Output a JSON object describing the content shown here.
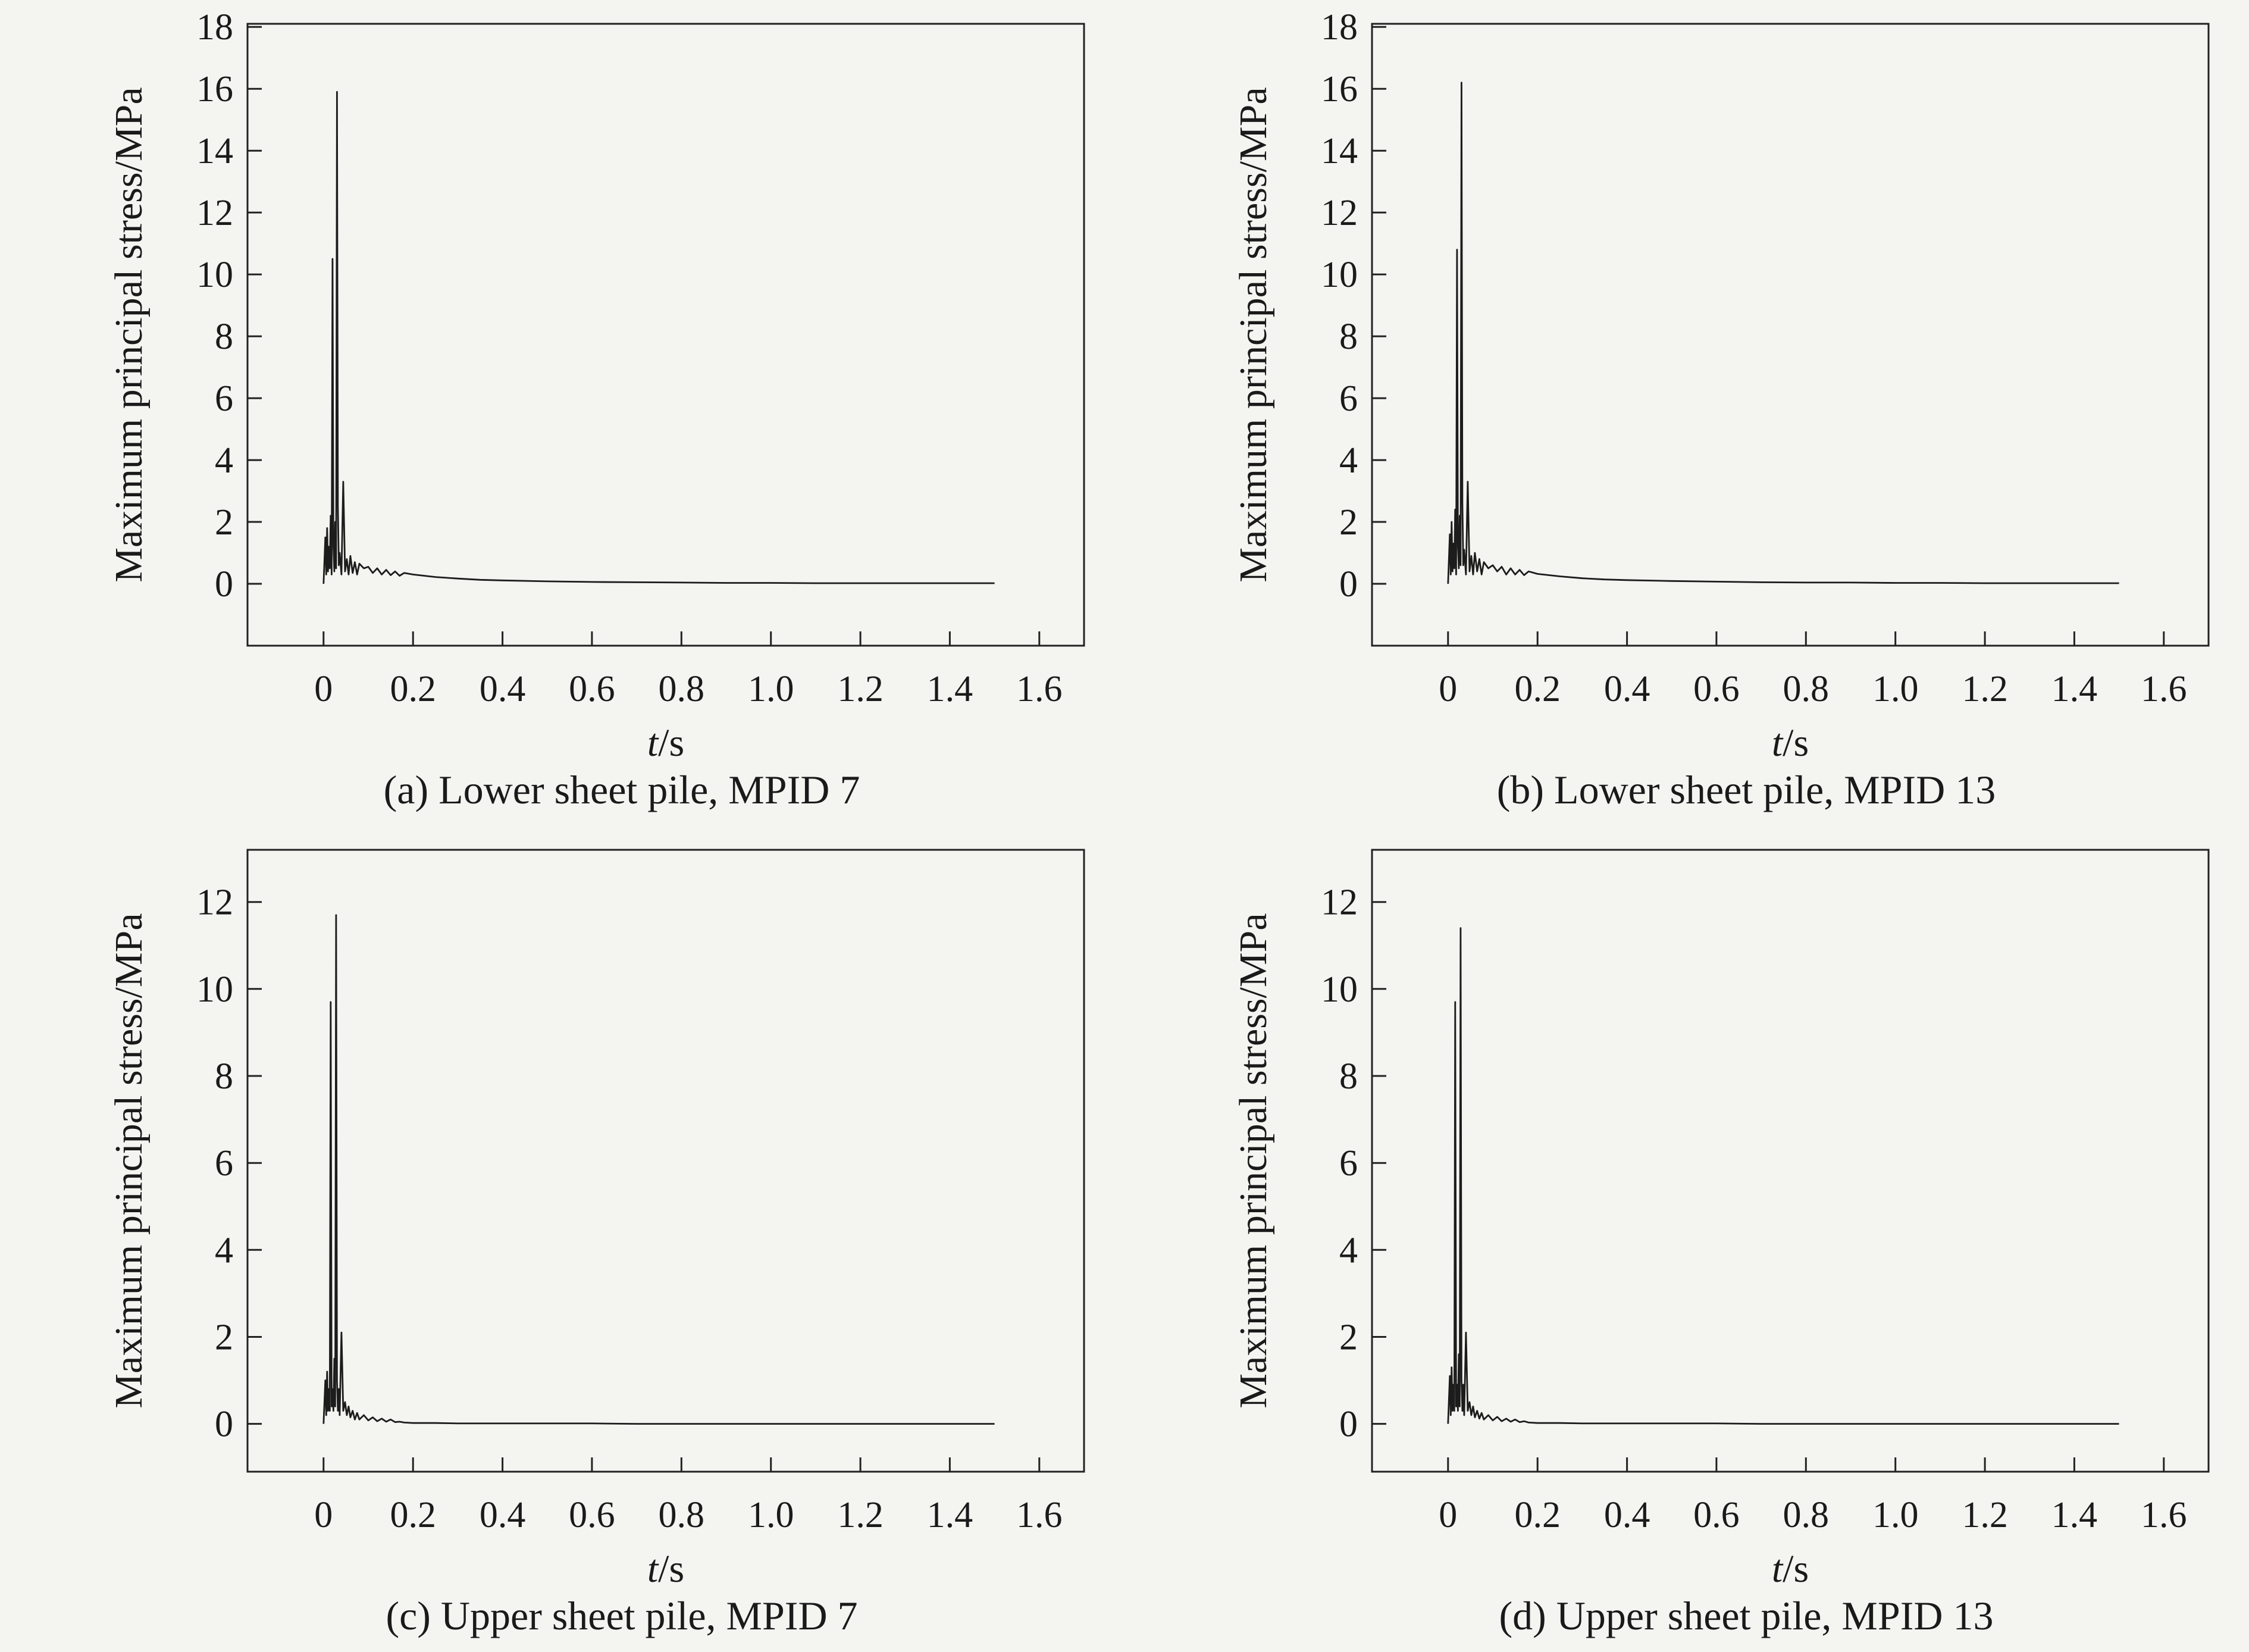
{
  "page": {
    "background": "#f4f4f1",
    "line_color": "#1c1c1c",
    "axis_color": "#222222"
  },
  "chart_data": [
    {
      "type": "line",
      "title": "(a) Lower sheet pile, MPID 7",
      "xlabel": "t/s",
      "ylabel": "Maximum principal stress/MPa",
      "xlim": [
        -0.17,
        1.7
      ],
      "ylim": [
        -2,
        18.1
      ],
      "xticks": [
        0,
        0.2,
        0.4,
        0.6,
        0.8,
        1.0,
        1.2,
        1.4,
        1.6
      ],
      "xtick_labels": [
        "0",
        "0.2",
        "0.4",
        "0.6",
        "0.8",
        "1.0",
        "1.2",
        "1.4",
        "1.6"
      ],
      "yticks": [
        0,
        2,
        4,
        6,
        8,
        10,
        12,
        14,
        16,
        18
      ],
      "ytick_labels": [
        "0",
        "2",
        "4",
        "6",
        "8",
        "10",
        "12",
        "14",
        "16",
        "18"
      ],
      "grid": false,
      "legend": "none",
      "series": [
        {
          "name": "max-principal-stress",
          "x": [
            0,
            0.004,
            0.006,
            0.008,
            0.01,
            0.012,
            0.014,
            0.016,
            0.018,
            0.02,
            0.022,
            0.024,
            0.026,
            0.028,
            0.03,
            0.032,
            0.034,
            0.036,
            0.04,
            0.044,
            0.048,
            0.052,
            0.056,
            0.06,
            0.065,
            0.07,
            0.075,
            0.08,
            0.09,
            0.1,
            0.11,
            0.12,
            0.13,
            0.14,
            0.15,
            0.16,
            0.17,
            0.18,
            0.2,
            0.25,
            0.3,
            0.35,
            0.4,
            0.5,
            0.6,
            0.7,
            0.8,
            0.9,
            1.0,
            1.1,
            1.2,
            1.3,
            1.4,
            1.5
          ],
          "y": [
            0,
            1.5,
            0.3,
            1.8,
            0.4,
            1.2,
            0.5,
            2.2,
            0.3,
            10.5,
            1.2,
            0.4,
            2.0,
            0.5,
            15.9,
            2.5,
            0.6,
            1.0,
            0.3,
            3.3,
            0.4,
            0.8,
            0.3,
            0.9,
            0.35,
            0.7,
            0.3,
            0.65,
            0.5,
            0.55,
            0.35,
            0.5,
            0.3,
            0.45,
            0.28,
            0.4,
            0.26,
            0.35,
            0.3,
            0.22,
            0.17,
            0.13,
            0.11,
            0.08,
            0.06,
            0.05,
            0.04,
            0.03,
            0.03,
            0.02,
            0.02,
            0.02,
            0.02,
            0.02
          ]
        }
      ]
    },
    {
      "type": "line",
      "title": "(b) Lower sheet pile, MPID 13",
      "xlabel": "t/s",
      "ylabel": "Maximum principal stress/MPa",
      "xlim": [
        -0.17,
        1.7
      ],
      "ylim": [
        -2,
        18.1
      ],
      "xticks": [
        0,
        0.2,
        0.4,
        0.6,
        0.8,
        1.0,
        1.2,
        1.4,
        1.6
      ],
      "xtick_labels": [
        "0",
        "0.2",
        "0.4",
        "0.6",
        "0.8",
        "1.0",
        "1.2",
        "1.4",
        "1.6"
      ],
      "yticks": [
        0,
        2,
        4,
        6,
        8,
        10,
        12,
        14,
        16,
        18
      ],
      "ytick_labels": [
        "0",
        "2",
        "4",
        "6",
        "8",
        "10",
        "12",
        "14",
        "16",
        "18"
      ],
      "grid": false,
      "legend": "none",
      "series": [
        {
          "name": "max-principal-stress",
          "x": [
            0,
            0.004,
            0.006,
            0.008,
            0.01,
            0.012,
            0.014,
            0.016,
            0.018,
            0.02,
            0.022,
            0.024,
            0.026,
            0.028,
            0.03,
            0.032,
            0.034,
            0.036,
            0.04,
            0.044,
            0.048,
            0.052,
            0.056,
            0.06,
            0.065,
            0.07,
            0.075,
            0.08,
            0.09,
            0.1,
            0.11,
            0.12,
            0.13,
            0.14,
            0.15,
            0.16,
            0.17,
            0.18,
            0.2,
            0.25,
            0.3,
            0.35,
            0.4,
            0.5,
            0.6,
            0.7,
            0.8,
            0.9,
            1.0,
            1.1,
            1.2,
            1.3,
            1.4,
            1.5
          ],
          "y": [
            0,
            1.6,
            0.3,
            2.0,
            0.4,
            1.3,
            0.5,
            2.4,
            0.3,
            10.8,
            1.2,
            0.5,
            2.2,
            0.6,
            16.2,
            2.6,
            0.6,
            1.1,
            0.3,
            3.3,
            0.4,
            0.9,
            0.3,
            1.0,
            0.4,
            0.8,
            0.3,
            0.7,
            0.5,
            0.6,
            0.4,
            0.55,
            0.3,
            0.5,
            0.3,
            0.45,
            0.28,
            0.4,
            0.32,
            0.24,
            0.18,
            0.14,
            0.12,
            0.09,
            0.07,
            0.05,
            0.04,
            0.04,
            0.03,
            0.03,
            0.02,
            0.02,
            0.02,
            0.02
          ]
        }
      ]
    },
    {
      "type": "line",
      "title": "(c) Upper sheet pile, MPID 7",
      "xlabel": "t/s",
      "ylabel": "Maximum principal stress/MPa",
      "xlim": [
        -0.17,
        1.7
      ],
      "ylim": [
        -1.1,
        13.2
      ],
      "xticks": [
        0,
        0.2,
        0.4,
        0.6,
        0.8,
        1.0,
        1.2,
        1.4,
        1.6
      ],
      "xtick_labels": [
        "0",
        "0.2",
        "0.4",
        "0.6",
        "0.8",
        "1.0",
        "1.2",
        "1.4",
        "1.6"
      ],
      "yticks": [
        0,
        2,
        4,
        6,
        8,
        10,
        12
      ],
      "ytick_labels": [
        "0",
        "2",
        "4",
        "6",
        "8",
        "10",
        "12"
      ],
      "grid": false,
      "legend": "none",
      "series": [
        {
          "name": "max-principal-stress",
          "x": [
            0,
            0.004,
            0.006,
            0.008,
            0.01,
            0.012,
            0.014,
            0.016,
            0.018,
            0.02,
            0.022,
            0.024,
            0.026,
            0.028,
            0.03,
            0.032,
            0.034,
            0.036,
            0.04,
            0.044,
            0.048,
            0.052,
            0.056,
            0.06,
            0.065,
            0.07,
            0.075,
            0.08,
            0.09,
            0.1,
            0.11,
            0.12,
            0.13,
            0.14,
            0.15,
            0.16,
            0.17,
            0.18,
            0.2,
            0.25,
            0.3,
            0.35,
            0.4,
            0.5,
            0.6,
            0.7,
            0.8,
            0.9,
            1.0,
            1.1,
            1.2,
            1.3,
            1.4,
            1.5
          ],
          "y": [
            0,
            1.0,
            0.2,
            1.2,
            0.3,
            0.8,
            0.3,
            9.7,
            0.4,
            0.8,
            0.3,
            1.5,
            0.4,
            11.7,
            1.0,
            0.3,
            0.8,
            0.2,
            2.1,
            0.3,
            0.5,
            0.2,
            0.4,
            0.15,
            0.3,
            0.1,
            0.25,
            0.1,
            0.2,
            0.08,
            0.15,
            0.06,
            0.12,
            0.05,
            0.1,
            0.04,
            0.05,
            0.03,
            0.02,
            0.02,
            0.01,
            0.01,
            0.01,
            0.01,
            0.01,
            0,
            0,
            0,
            0,
            0,
            0,
            0,
            0,
            0
          ]
        }
      ]
    },
    {
      "type": "line",
      "title": "(d) Upper sheet pile, MPID 13",
      "xlabel": "t/s",
      "ylabel": "Maximum principal stress/MPa",
      "xlim": [
        -0.17,
        1.7
      ],
      "ylim": [
        -1.1,
        13.2
      ],
      "xticks": [
        0,
        0.2,
        0.4,
        0.6,
        0.8,
        1.0,
        1.2,
        1.4,
        1.6
      ],
      "xtick_labels": [
        "0",
        "0.2",
        "0.4",
        "0.6",
        "0.8",
        "1.0",
        "1.2",
        "1.4",
        "1.6"
      ],
      "yticks": [
        0,
        2,
        4,
        6,
        8,
        10,
        12
      ],
      "ytick_labels": [
        "0",
        "2",
        "4",
        "6",
        "8",
        "10",
        "12"
      ],
      "grid": false,
      "legend": "none",
      "series": [
        {
          "name": "max-principal-stress",
          "x": [
            0,
            0.004,
            0.006,
            0.008,
            0.01,
            0.012,
            0.014,
            0.016,
            0.018,
            0.02,
            0.022,
            0.024,
            0.026,
            0.028,
            0.03,
            0.032,
            0.034,
            0.036,
            0.04,
            0.044,
            0.048,
            0.052,
            0.056,
            0.06,
            0.065,
            0.07,
            0.075,
            0.08,
            0.09,
            0.1,
            0.11,
            0.12,
            0.13,
            0.14,
            0.15,
            0.16,
            0.17,
            0.18,
            0.2,
            0.25,
            0.3,
            0.35,
            0.4,
            0.5,
            0.6,
            0.7,
            0.8,
            0.9,
            1.0,
            1.1,
            1.2,
            1.3,
            1.4,
            1.5
          ],
          "y": [
            0,
            1.1,
            0.2,
            1.3,
            0.3,
            0.9,
            0.3,
            9.7,
            0.4,
            0.9,
            0.3,
            1.6,
            0.4,
            11.4,
            1.0,
            0.3,
            0.9,
            0.2,
            2.1,
            0.3,
            0.5,
            0.2,
            0.4,
            0.15,
            0.3,
            0.12,
            0.25,
            0.1,
            0.2,
            0.08,
            0.16,
            0.06,
            0.12,
            0.05,
            0.1,
            0.04,
            0.06,
            0.03,
            0.02,
            0.02,
            0.01,
            0.01,
            0.01,
            0.01,
            0.01,
            0,
            0,
            0,
            0,
            0,
            0,
            0,
            0,
            0
          ]
        }
      ]
    }
  ]
}
